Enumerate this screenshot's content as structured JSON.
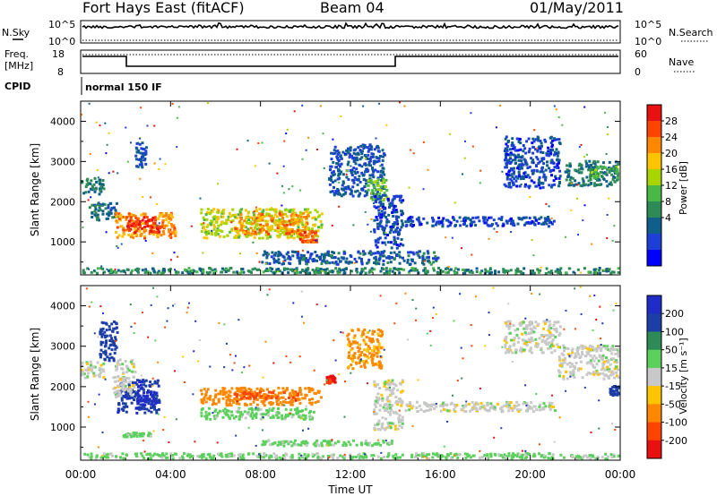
{
  "header": {
    "station": "Fort Hays East (fitACF)",
    "beam": "Beam 04",
    "date": "01/May/2011"
  },
  "top_panels": {
    "noise_left_label": "N.Sky",
    "noise_right_label": "N.Search",
    "noise_left_ticks": [
      "10^5",
      "10^0"
    ],
    "noise_right_ticks": [
      "10^5",
      "10^0"
    ],
    "freq_label_line1": "Freq.",
    "freq_label_line2": "[MHz]",
    "freq_ticks": [
      "18",
      "8"
    ],
    "nave_label": "Nave",
    "nave_ticks": [
      "60",
      "0"
    ],
    "cpid_label": "CPID",
    "cpid_value": "normal 150 IF"
  },
  "colorbars": {
    "power": {
      "label": "Power [dB]",
      "ticks": [
        "28",
        "24",
        "20",
        "16",
        "12",
        "8",
        "4"
      ],
      "colors": [
        "#e81010",
        "#ff4400",
        "#ff8800",
        "#ffc400",
        "#a8d400",
        "#48b848",
        "#2e8b57",
        "#0f5f8a",
        "#1e3fd6",
        "#0000ff"
      ]
    },
    "velocity": {
      "label": "Velocity [m s⁻¹]",
      "ticks": [
        "200",
        "100",
        "50",
        "15",
        "-15",
        "-50",
        "-100",
        "-200"
      ],
      "colors": [
        "#1f2cc8",
        "#1c3ea6",
        "#2e8b57",
        "#5cd05c",
        "#c8c8c8",
        "#ffc400",
        "#ff8800",
        "#ff4400",
        "#e81010"
      ]
    }
  },
  "chart_data": [
    {
      "type": "heatmap",
      "title": "",
      "quantity": "Power [dB]",
      "xlabel": "Time UT",
      "ylabel": "Slant Range [km]",
      "x_tick_labels": [
        "00:00",
        "04:00",
        "08:00",
        "12:00",
        "16:00",
        "20:00",
        "00:00"
      ],
      "y_tick_labels": [
        "1000",
        "2000",
        "3000",
        "4000"
      ],
      "xlim": [
        0,
        24
      ],
      "ylim": [
        180,
        4500
      ],
      "colorscale": [
        0,
        30
      ],
      "regions": [
        {
          "t": [
            0.0,
            1.1
          ],
          "r": [
            2150,
            2650
          ],
          "v": 9
        },
        {
          "t": [
            0.3,
            1.7
          ],
          "r": [
            1500,
            2000
          ],
          "v": 8
        },
        {
          "t": [
            1.5,
            4.3
          ],
          "r": [
            1050,
            1750
          ],
          "v": 22
        },
        {
          "t": [
            2.0,
            3.6
          ],
          "r": [
            1200,
            1650
          ],
          "v": 27
        },
        {
          "t": [
            2.4,
            3.0
          ],
          "r": [
            2800,
            3500
          ],
          "v": 6
        },
        {
          "t": [
            5.3,
            10.8
          ],
          "r": [
            1050,
            1850
          ],
          "v": 17
        },
        {
          "t": [
            6.8,
            10.2
          ],
          "r": [
            1150,
            1750
          ],
          "v": 22
        },
        {
          "t": [
            9.7,
            10.6
          ],
          "r": [
            950,
            1300
          ],
          "v": 25
        },
        {
          "t": [
            11.0,
            13.6
          ],
          "r": [
            2100,
            3450
          ],
          "v": 6
        },
        {
          "t": [
            12.7,
            13.7
          ],
          "r": [
            2000,
            2600
          ],
          "v": 14
        },
        {
          "t": [
            13.0,
            14.4
          ],
          "r": [
            800,
            2200
          ],
          "v": 5
        },
        {
          "t": [
            14.4,
            21.2
          ],
          "r": [
            1350,
            1650
          ],
          "v": 5
        },
        {
          "t": [
            18.8,
            21.4
          ],
          "r": [
            2300,
            3650
          ],
          "v": 5
        },
        {
          "t": [
            21.5,
            24.0
          ],
          "r": [
            2350,
            3050
          ],
          "v": 9
        },
        {
          "t": [
            22.6,
            24.0
          ],
          "r": [
            2550,
            2900
          ],
          "v": 13
        },
        {
          "t": [
            8.0,
            16.0
          ],
          "r": [
            400,
            800
          ],
          "v": 7
        },
        {
          "t": [
            0.0,
            24.0
          ],
          "r": [
            180,
            380
          ],
          "v": 10
        }
      ]
    },
    {
      "type": "heatmap",
      "title": "",
      "quantity": "Velocity [m s⁻¹]",
      "xlabel": "Time UT",
      "ylabel": "Slant Range [km]",
      "x_tick_labels": [
        "00:00",
        "04:00",
        "08:00",
        "12:00",
        "16:00",
        "20:00",
        "00:00"
      ],
      "y_tick_labels": [
        "1000",
        "2000",
        "3000",
        "4000"
      ],
      "xlim": [
        0,
        24
      ],
      "ylim": [
        180,
        4500
      ],
      "colorscale": [
        -250,
        250
      ],
      "regions": [
        {
          "t": [
            0.0,
            1.1
          ],
          "r": [
            2150,
            2650
          ],
          "v": 0
        },
        {
          "t": [
            0.8,
            1.7
          ],
          "r": [
            2600,
            3650
          ],
          "v": 180
        },
        {
          "t": [
            1.6,
            3.6
          ],
          "r": [
            1300,
            2200
          ],
          "v": 190
        },
        {
          "t": [
            2.4,
            3.4
          ],
          "r": [
            1500,
            1900
          ],
          "v": 220
        },
        {
          "t": [
            1.4,
            2.5
          ],
          "r": [
            1700,
            2700
          ],
          "v": 0
        },
        {
          "t": [
            1.8,
            3.2
          ],
          "r": [
            720,
            900
          ],
          "v": 30
        },
        {
          "t": [
            5.3,
            10.8
          ],
          "r": [
            1500,
            2000
          ],
          "v": -75
        },
        {
          "t": [
            6.8,
            9.8
          ],
          "r": [
            1650,
            1900
          ],
          "v": -110
        },
        {
          "t": [
            5.3,
            10.5
          ],
          "r": [
            1150,
            1500
          ],
          "v": 30
        },
        {
          "t": [
            10.9,
            11.4
          ],
          "r": [
            2050,
            2300
          ],
          "v": -210
        },
        {
          "t": [
            11.8,
            13.5
          ],
          "r": [
            2400,
            3450
          ],
          "v": -60
        },
        {
          "t": [
            13.0,
            14.4
          ],
          "r": [
            900,
            2200
          ],
          "v": 0
        },
        {
          "t": [
            14.4,
            21.2
          ],
          "r": [
            1350,
            1650
          ],
          "v": 0
        },
        {
          "t": [
            18.8,
            21.4
          ],
          "r": [
            2800,
            3650
          ],
          "v": 0
        },
        {
          "t": [
            21.2,
            24.0
          ],
          "r": [
            2150,
            3050
          ],
          "v": 0
        },
        {
          "t": [
            23.5,
            24.0
          ],
          "r": [
            1750,
            2050
          ],
          "v": 150
        },
        {
          "t": [
            8.0,
            14.0
          ],
          "r": [
            500,
            700
          ],
          "v": 30
        },
        {
          "t": [
            0.0,
            24.0
          ],
          "r": [
            180,
            380
          ],
          "v": 25
        }
      ]
    }
  ]
}
